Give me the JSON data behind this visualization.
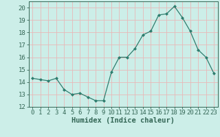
{
  "x": [
    0,
    1,
    2,
    3,
    4,
    5,
    6,
    7,
    8,
    9,
    10,
    11,
    12,
    13,
    14,
    15,
    16,
    17,
    18,
    19,
    20,
    21,
    22,
    23
  ],
  "y": [
    14.3,
    14.2,
    14.1,
    14.3,
    13.4,
    13.0,
    13.1,
    12.8,
    12.5,
    12.5,
    14.8,
    16.0,
    16.0,
    16.7,
    17.8,
    18.1,
    19.4,
    19.5,
    20.1,
    19.2,
    18.1,
    16.6,
    16.0,
    14.7
  ],
  "xlabel": "Humidex (Indice chaleur)",
  "xlim": [
    -0.5,
    23.5
  ],
  "ylim": [
    12,
    20.5
  ],
  "yticks": [
    12,
    13,
    14,
    15,
    16,
    17,
    18,
    19,
    20
  ],
  "xticks": [
    0,
    1,
    2,
    3,
    4,
    5,
    6,
    7,
    8,
    9,
    10,
    11,
    12,
    13,
    14,
    15,
    16,
    17,
    18,
    19,
    20,
    21,
    22,
    23
  ],
  "line_color": "#2e7d6e",
  "marker": "D",
  "marker_size": 2.0,
  "bg_color": "#cceee8",
  "grid_color": "#e8b8b8",
  "axis_color": "#336655",
  "xlabel_fontsize": 7.5,
  "tick_fontsize": 6.5
}
